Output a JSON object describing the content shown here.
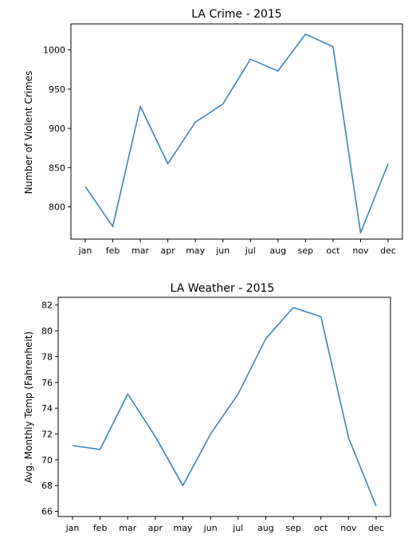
{
  "chart_data": [
    {
      "type": "line",
      "title": "LA Crime - 2015",
      "xlabel": "",
      "ylabel": "Number of Violent Crimes",
      "categories": [
        "jan",
        "feb",
        "mar",
        "apr",
        "may",
        "jun",
        "jul",
        "aug",
        "sep",
        "oct",
        "nov",
        "dec"
      ],
      "series": [
        {
          "values": [
            826,
            775,
            928,
            855,
            908,
            931,
            988,
            973,
            1020,
            1004,
            767,
            855
          ]
        }
      ],
      "ylim": [
        759,
        1033
      ],
      "yticks": [
        800,
        850,
        900,
        950,
        1000
      ],
      "grid": false,
      "line_color": "#3a84bf"
    },
    {
      "type": "line",
      "title": "LA Weather - 2015",
      "xlabel": "",
      "ylabel": "Avg. Monthly Temp (Fahrenheit)",
      "categories": [
        "jan",
        "feb",
        "mar",
        "apr",
        "may",
        "jun",
        "jul",
        "aug",
        "sep",
        "oct",
        "nov",
        "dec"
      ],
      "series": [
        {
          "values": [
            71.1,
            70.8,
            75.1,
            71.8,
            68.0,
            72.0,
            75.1,
            79.4,
            81.8,
            81.1,
            71.7,
            66.4
          ]
        }
      ],
      "ylim": [
        65.6,
        82.6
      ],
      "yticks": [
        66,
        68,
        70,
        72,
        74,
        76,
        78,
        80,
        82
      ],
      "grid": false,
      "line_color": "#3a84bf"
    }
  ]
}
